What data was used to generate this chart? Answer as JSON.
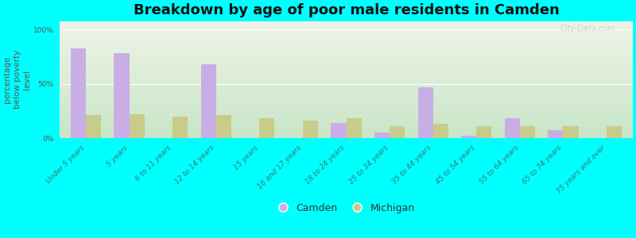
{
  "title": "Breakdown by age of poor male residents in Camden",
  "ylabel": "percentage\nbelow poverty\nlevel",
  "categories": [
    "Under 5 years",
    "5 years",
    "6 to 11 years",
    "12 to 14 years",
    "15 years",
    "16 and 17 years",
    "18 to 24 years",
    "25 to 34 years",
    "35 to 44 years",
    "45 to 54 years",
    "55 to 64 years",
    "65 to 74 years",
    "75 years and over"
  ],
  "camden_values": [
    83,
    78,
    0,
    68,
    0,
    0,
    14,
    5,
    47,
    2,
    18,
    7,
    0
  ],
  "michigan_values": [
    21,
    22,
    20,
    21,
    18,
    16,
    18,
    11,
    13,
    11,
    11,
    11,
    11
  ],
  "camden_color": "#c9aee5",
  "michigan_color": "#c8cc8a",
  "background_color": "#00ffff",
  "plot_bg_top": "#f0f4e8",
  "plot_bg_bottom": "#c8e6c8",
  "yticks": [
    0,
    50,
    100
  ],
  "ytick_labels": [
    "0%",
    "50%",
    "100%"
  ],
  "ylim": [
    0,
    108
  ],
  "bar_width": 0.35,
  "title_fontsize": 13,
  "label_fontsize": 7.5,
  "tick_fontsize": 6.5,
  "xtick_color": "#337777",
  "ytick_color": "#555555",
  "legend_labels": [
    "Camden",
    "Michigan"
  ],
  "watermark": "City-Data.com",
  "watermark_color": "#bbcccc"
}
